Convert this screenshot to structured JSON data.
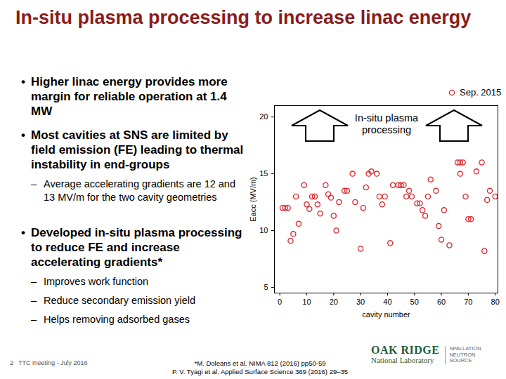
{
  "slide": {
    "title": "In-situ plasma processing to increase linac energy",
    "bullets": [
      {
        "text": "Higher linac energy provides more margin for reliable operation at 1.4 MW",
        "sub": []
      },
      {
        "text": "Most cavities at SNS are limited by field emission (FE) leading to thermal instability in end-groups",
        "sub": [
          "Average accelerating gradients are 12 and 13 MV/m for the two cavity geometries"
        ]
      },
      {
        "text": "Developed in-situ plasma processing to reduce FE and increase accelerating gradients*",
        "sub": [
          "Improves work function",
          "Reduce secondary emission yield",
          "Helps removing adsorbed gases"
        ]
      }
    ],
    "footer": {
      "page": "2",
      "meeting": "TTC meeting - July 2016",
      "references": [
        "*M. Doleans et al. NIMA 812 (2016) pp50-59",
        "P. V. Tyagi et al. Applied Surface Science 369 (2016) 29–35"
      ],
      "logo": [
        "OAK RIDGE",
        "National Laboratory",
        "SPALLATION",
        "NEUTRON",
        "SOURCE"
      ]
    }
  },
  "chart_data": {
    "type": "scatter",
    "xlabel": "cavity number",
    "ylabel": "Eacc (MV/m)",
    "annotations": [
      "In-situ plasma processing"
    ],
    "x": [
      1,
      2,
      3,
      4,
      5,
      6,
      7,
      9,
      10,
      11,
      12,
      13,
      14,
      15,
      17,
      18,
      19,
      20,
      21,
      22,
      24,
      25,
      27,
      28,
      30,
      31,
      32,
      33,
      34,
      36,
      37,
      38,
      39,
      41,
      42,
      44,
      45,
      46,
      47,
      48,
      49,
      51,
      52,
      53,
      54,
      55,
      56,
      58,
      59,
      60,
      61,
      63,
      66,
      67,
      68,
      67,
      69,
      70,
      71,
      73,
      75,
      76,
      77,
      78,
      80
    ],
    "series": [
      {
        "name": "Sep. 2015",
        "color": "#e0262b",
        "marker": "circle",
        "values": [
          12,
          12,
          12,
          9.1,
          9.7,
          13,
          10.6,
          14,
          12.3,
          11.9,
          13,
          13,
          12.3,
          11.5,
          14,
          13.2,
          12.9,
          11.3,
          10,
          12.5,
          13.5,
          13.5,
          15,
          12.5,
          8.4,
          12,
          13.8,
          15,
          15.2,
          15,
          13,
          12.3,
          13,
          8.9,
          14,
          14,
          14,
          14,
          13,
          13.5,
          13,
          12.4,
          12.4,
          11.8,
          11.3,
          13,
          14.5,
          13.5,
          10.4,
          9.2,
          11.8,
          8.7,
          16,
          16,
          16,
          15,
          13,
          11,
          11,
          15.2,
          16,
          8.2,
          12.7,
          13.5,
          13
        ]
      }
    ],
    "xlim": [
      -2,
      81
    ],
    "ylim": [
      4.5,
      21
    ],
    "xticks": [
      0,
      10,
      20,
      30,
      40,
      50,
      60,
      70,
      80
    ],
    "yticks": [
      5,
      10,
      15,
      20
    ],
    "grid": false,
    "legend": "top-right"
  }
}
